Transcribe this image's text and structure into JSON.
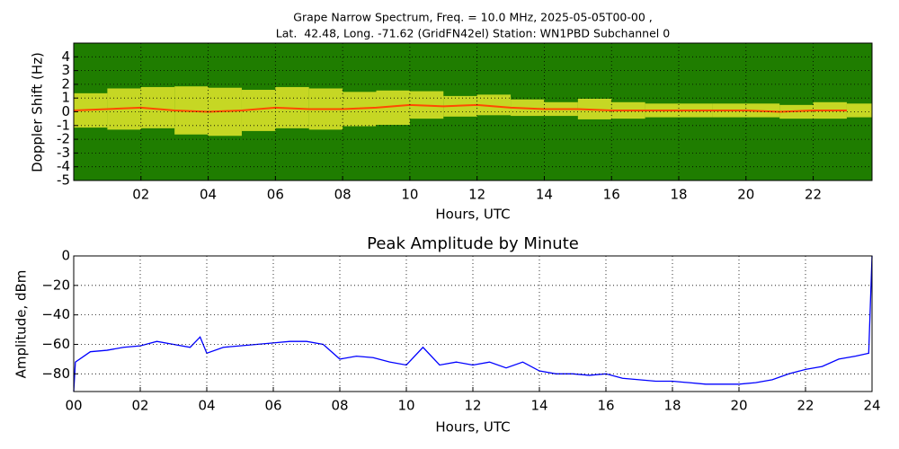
{
  "chart_data": [
    {
      "type": "spectrogram",
      "title": [
        "Grape Narrow Spectrum, Freq. = 10.0 MHz, 2025-05-05T00-00 ,",
        "Lat.  42.48, Long. -71.62 (GridFN42el) Station: WN1PBD Subchannel 0"
      ],
      "x_label": "Hours, UTC",
      "y_label": "Doppler Shift (Hz)",
      "x": [
        0,
        1,
        2,
        3,
        4,
        5,
        6,
        7,
        8,
        9,
        10,
        11,
        12,
        13,
        14,
        15,
        16,
        17,
        18,
        19,
        20,
        21,
        22,
        23
      ],
      "values": [
        0.1,
        0.2,
        0.3,
        0.1,
        0.0,
        0.1,
        0.3,
        0.2,
        0.2,
        0.3,
        0.5,
        0.4,
        0.5,
        0.3,
        0.2,
        0.2,
        0.1,
        0.1,
        0.1,
        0.1,
        0.1,
        0.0,
        0.1,
        0.1
      ],
      "spread": [
        2.5,
        3,
        3,
        3.5,
        3.5,
        3,
        3,
        3,
        2.5,
        2.5,
        2,
        1.5,
        1.5,
        1.2,
        1,
        1.5,
        1.2,
        1,
        1,
        1,
        1,
        1,
        1.2,
        1
      ],
      "background_color": "#1f7d00",
      "band_color": "#e4e62a",
      "color": "#ff4a00",
      "xlim": [
        0,
        23.75
      ],
      "ylim": [
        -5,
        5
      ],
      "xticks": [
        {
          "value": 2,
          "label": "02"
        },
        {
          "value": 4,
          "label": "04"
        },
        {
          "value": 6,
          "label": "06"
        },
        {
          "value": 8,
          "label": "08"
        },
        {
          "value": 10,
          "label": "10"
        },
        {
          "value": 12,
          "label": "12"
        },
        {
          "value": 14,
          "label": "14"
        },
        {
          "value": 16,
          "label": "16"
        },
        {
          "value": 18,
          "label": "18"
        },
        {
          "value": 20,
          "label": "20"
        },
        {
          "value": 22,
          "label": "22"
        }
      ],
      "yticks": [
        -5,
        -4,
        -3,
        -2,
        -1,
        0,
        1,
        2,
        3,
        4
      ],
      "grid": true
    },
    {
      "type": "line",
      "title": "Peak Amplitude by Minute",
      "x_label": "Hours, UTC",
      "y_label": "Amplitude, dBm",
      "x": [
        0,
        0.05,
        0.5,
        1,
        1.5,
        2,
        2.5,
        3,
        3.5,
        3.8,
        4,
        4.5,
        5,
        5.5,
        6,
        6.5,
        7,
        7.5,
        8,
        8.5,
        9,
        9.5,
        10,
        10.5,
        11,
        11.5,
        12,
        12.5,
        13,
        13.5,
        14,
        14.5,
        15,
        15.5,
        16,
        16.5,
        17,
        17.5,
        18,
        18.5,
        19,
        19.5,
        20,
        20.5,
        21,
        21.5,
        22,
        22.5,
        23,
        23.5,
        23.9,
        24
      ],
      "values": [
        -92,
        -72,
        -65,
        -64,
        -62,
        -61,
        -58,
        -60,
        -62,
        -55,
        -66,
        -62,
        -61,
        -60,
        -59,
        -58,
        -58,
        -60,
        -70,
        -68,
        -69,
        -72,
        -74,
        -62,
        -74,
        -72,
        -74,
        -72,
        -76,
        -72,
        -78,
        -80,
        -80,
        -81,
        -80,
        -83,
        -84,
        -85,
        -85,
        -86,
        -87,
        -87,
        -87,
        -86,
        -84,
        -80,
        -77,
        -75,
        -70,
        -68,
        -66,
        0
      ],
      "color": "#0000ff",
      "xlim": [
        0,
        24
      ],
      "ylim": [
        -92,
        0
      ],
      "xticks": [
        {
          "value": 0,
          "label": "00"
        },
        {
          "value": 2,
          "label": "02"
        },
        {
          "value": 4,
          "label": "04"
        },
        {
          "value": 6,
          "label": "06"
        },
        {
          "value": 8,
          "label": "08"
        },
        {
          "value": 10,
          "label": "10"
        },
        {
          "value": 12,
          "label": "12"
        },
        {
          "value": 14,
          "label": "14"
        },
        {
          "value": 16,
          "label": "16"
        },
        {
          "value": 18,
          "label": "18"
        },
        {
          "value": 20,
          "label": "20"
        },
        {
          "value": 22,
          "label": "22"
        },
        {
          "value": 24,
          "label": "24"
        }
      ],
      "yticks": [
        0,
        {
          "value": -20,
          "label": "−20"
        },
        {
          "value": -40,
          "label": "−40"
        },
        {
          "value": -60,
          "label": "−60"
        },
        {
          "value": -80,
          "label": "−80"
        }
      ],
      "grid": true
    }
  ]
}
